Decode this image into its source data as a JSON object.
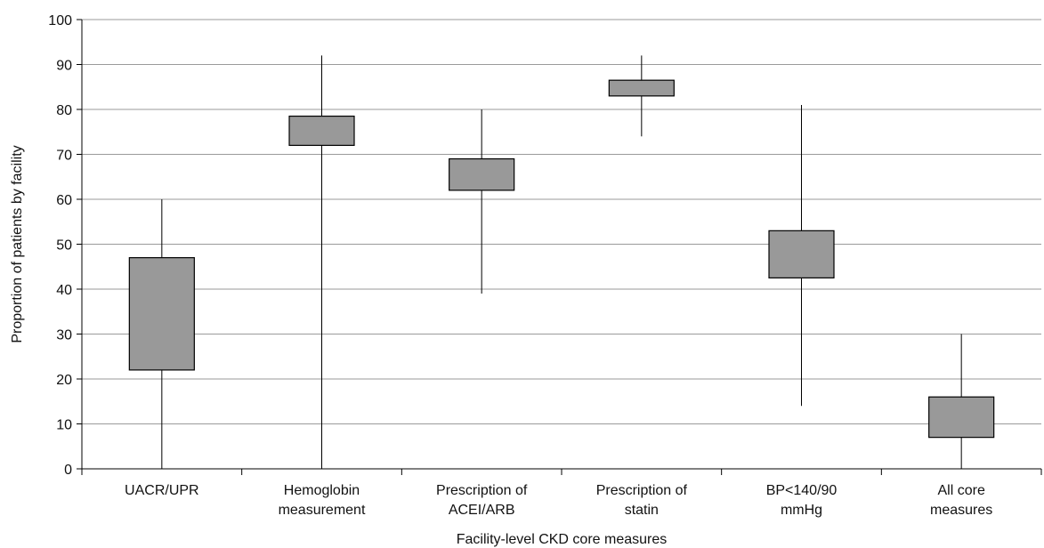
{
  "chart_data": {
    "type": "box",
    "xlabel": "Facility-level CKD core measures",
    "ylabel": "Proportion of patients by facility",
    "ylim": [
      0,
      100
    ],
    "yticks": [
      0,
      10,
      20,
      30,
      40,
      50,
      60,
      70,
      80,
      90,
      100
    ],
    "grid": true,
    "categories": [
      [
        "UACR/UPR"
      ],
      [
        "Hemoglobin",
        "measurement"
      ],
      [
        "Prescription of",
        "ACEI/ARB"
      ],
      [
        "Prescription of",
        "statin"
      ],
      [
        "BP<140/90",
        "mmHg"
      ],
      [
        "All core",
        "measures"
      ]
    ],
    "series": [
      {
        "boxes": [
          {
            "min": 0,
            "q1": 22,
            "q3": 47,
            "max": 60
          },
          {
            "min": 0,
            "q1": 72,
            "q3": 78.5,
            "max": 92
          },
          {
            "min": 39,
            "q1": 62,
            "q3": 69,
            "max": 80
          },
          {
            "min": 74,
            "q1": 83,
            "q3": 86.5,
            "max": 92
          },
          {
            "min": 14,
            "q1": 42.5,
            "q3": 53,
            "max": 81
          },
          {
            "min": 0,
            "q1": 7,
            "q3": 16,
            "max": 30
          }
        ]
      }
    ],
    "colors": {
      "box_fill": "#999999",
      "box_stroke": "#000000",
      "grid": "#9a9a9a",
      "axis": "#000000"
    }
  }
}
